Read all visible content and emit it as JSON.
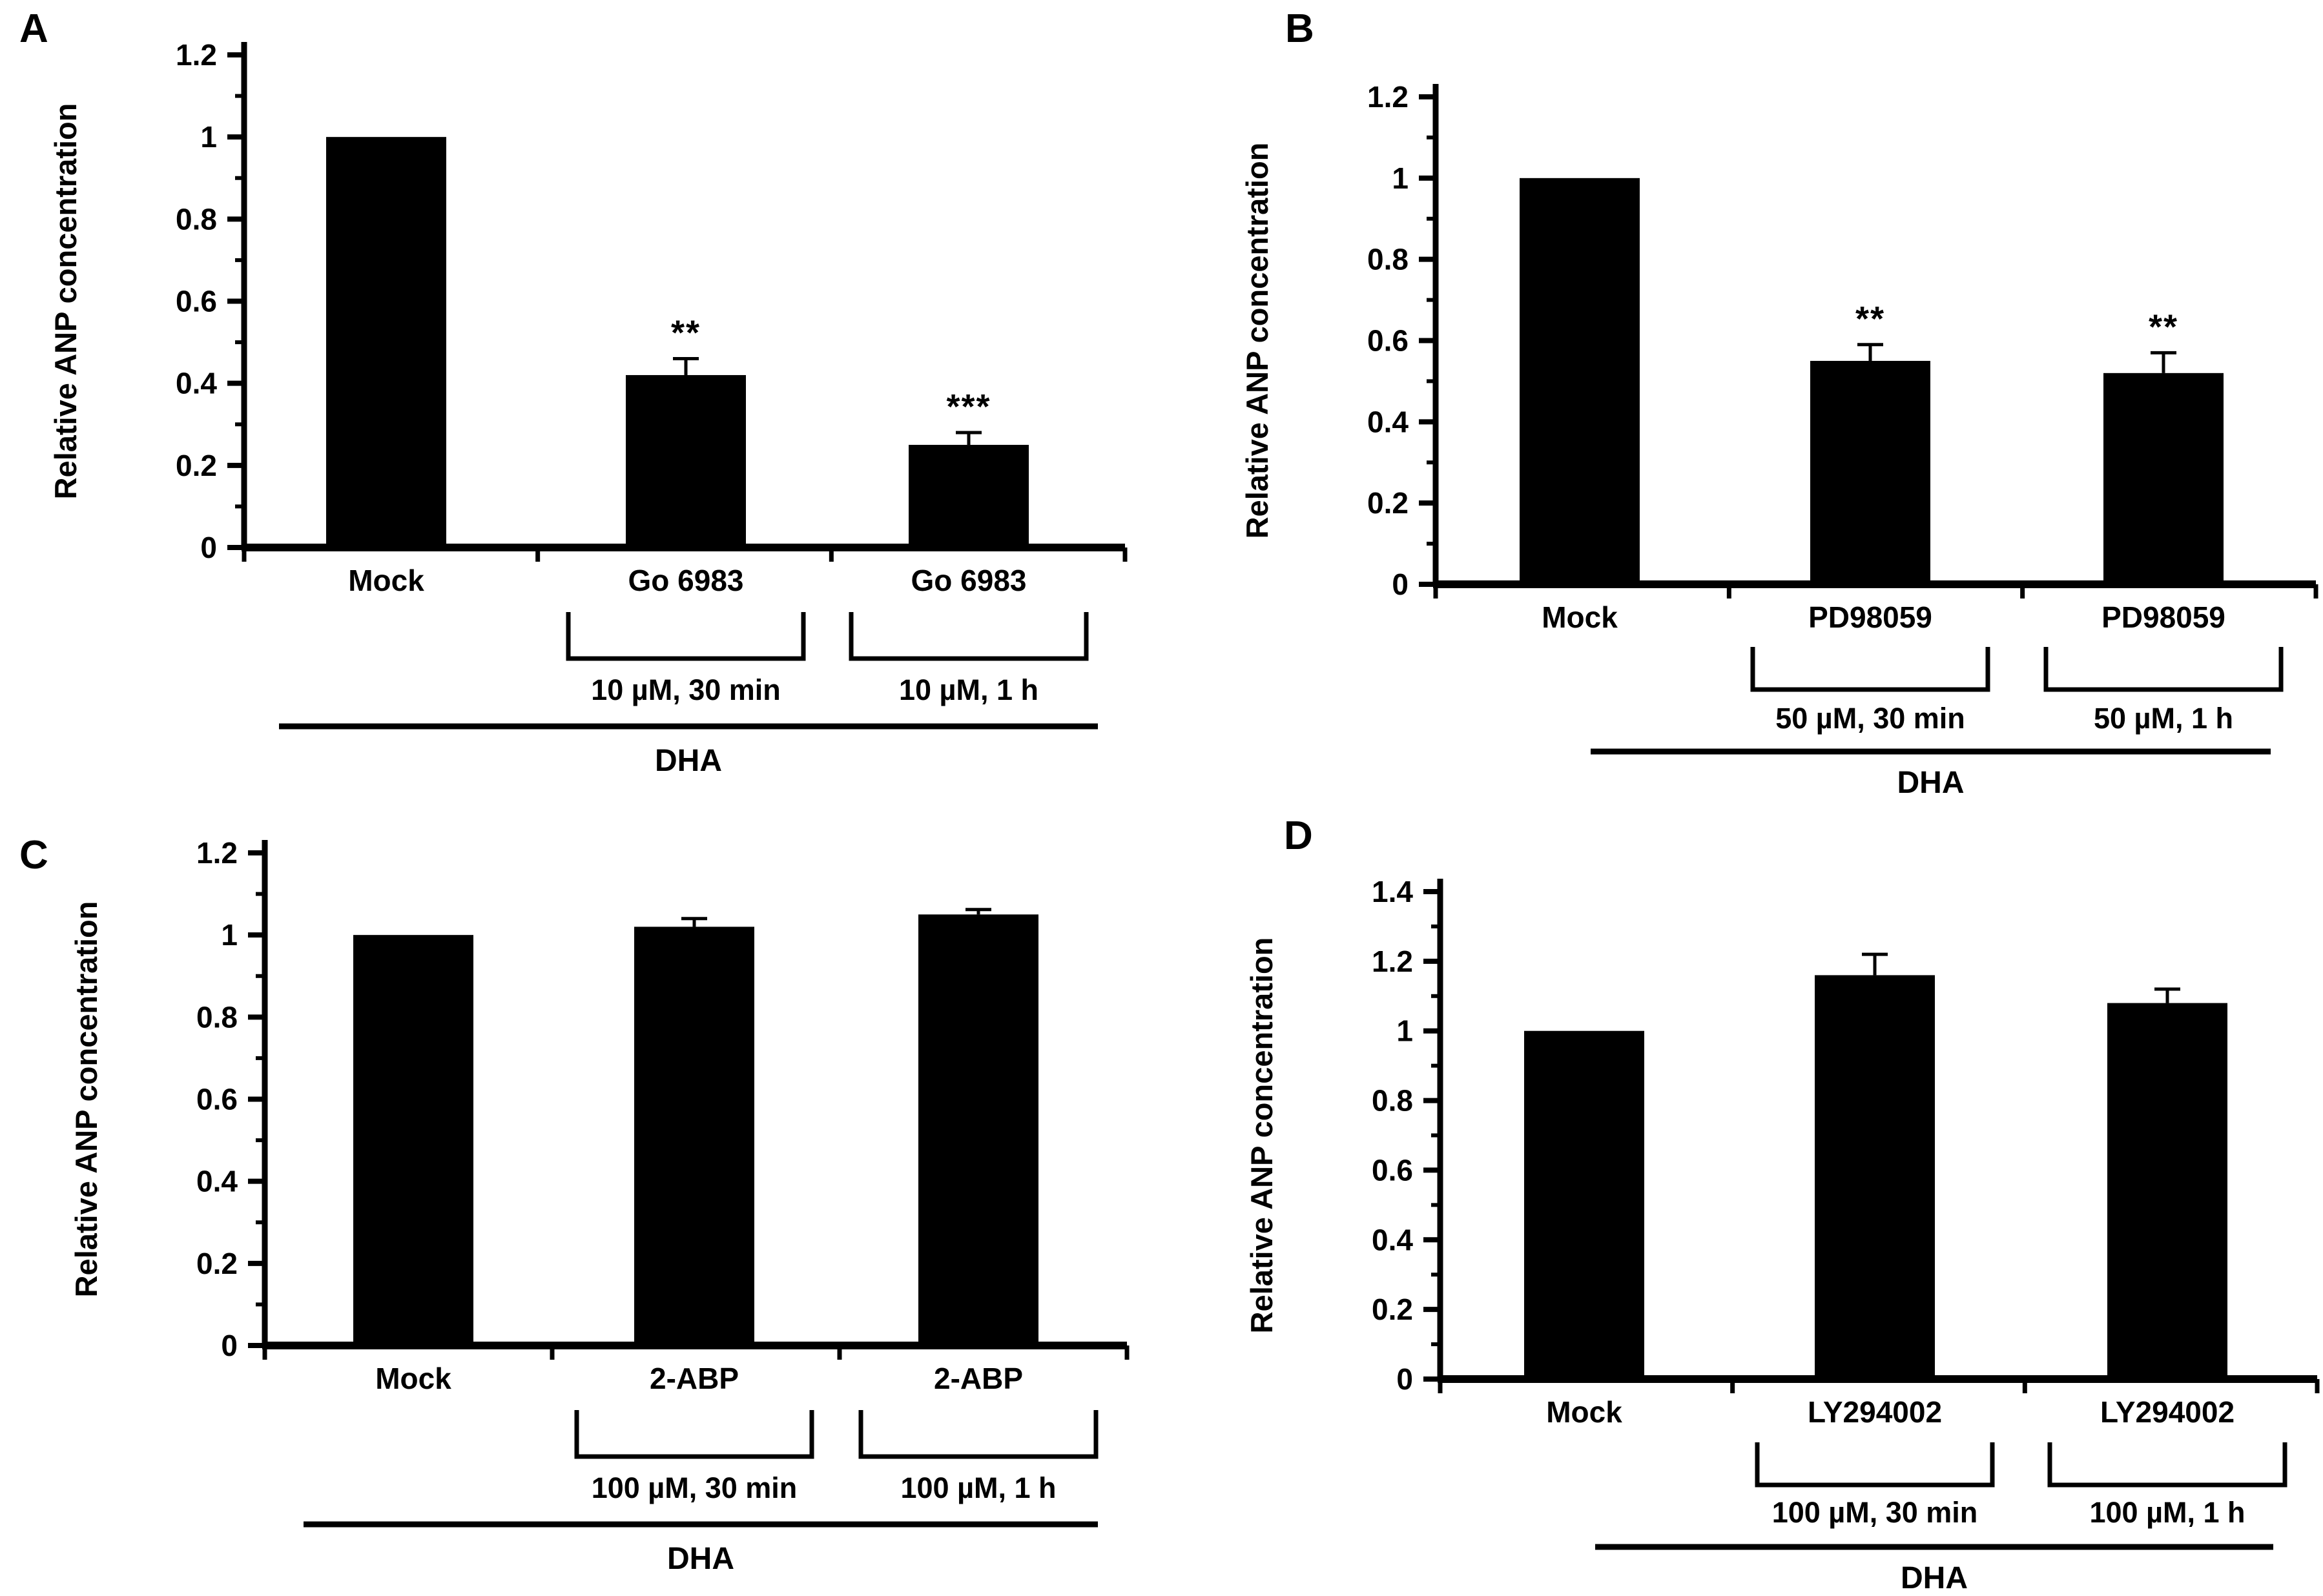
{
  "figure": {
    "background_color": "#ffffff",
    "bar_color": "#000000",
    "text_color": "#000000"
  },
  "chart_data": [
    {
      "type": "bar",
      "panel": "A",
      "ylabel": "Relative ANP concentration",
      "xlabel": "",
      "ylim": [
        0,
        1.2
      ],
      "yticks": [
        0,
        0.2,
        0.4,
        0.6,
        0.8,
        1,
        1.2
      ],
      "grid": false,
      "legend": "none",
      "group_line_label": "DHA",
      "bars": [
        {
          "category": "Mock",
          "value": 1.0,
          "error": 0,
          "significance": "",
          "dose": "",
          "bracket": false
        },
        {
          "category": "Go 6983",
          "value": 0.42,
          "error": 0.04,
          "significance": "**",
          "dose": "10 µM, 30 min",
          "bracket": true
        },
        {
          "category": "Go 6983",
          "value": 0.25,
          "error": 0.03,
          "significance": "***",
          "dose": "10 µM, 1 h",
          "bracket": true
        }
      ]
    },
    {
      "type": "bar",
      "panel": "B",
      "ylabel": "Relative ANP concentration",
      "xlabel": "",
      "ylim": [
        0,
        1.2
      ],
      "yticks": [
        0,
        0.2,
        0.4,
        0.6,
        0.8,
        1,
        1.2
      ],
      "grid": false,
      "legend": "none",
      "group_line_label": "DHA",
      "bars": [
        {
          "category": "Mock",
          "value": 1.0,
          "error": 0,
          "significance": "",
          "dose": "",
          "bracket": false
        },
        {
          "category": "PD98059",
          "value": 0.55,
          "error": 0.04,
          "significance": "**",
          "dose": "50 µM, 30 min",
          "bracket": true
        },
        {
          "category": "PD98059",
          "value": 0.52,
          "error": 0.05,
          "significance": "**",
          "dose": "50 µM, 1 h",
          "bracket": true
        }
      ]
    },
    {
      "type": "bar",
      "panel": "C",
      "ylabel": "Relative ANP concentration",
      "xlabel": "",
      "ylim": [
        0,
        1.2
      ],
      "yticks": [
        0,
        0.2,
        0.4,
        0.6,
        0.8,
        1,
        1.2
      ],
      "grid": false,
      "legend": "none",
      "group_line_label": "DHA",
      "bars": [
        {
          "category": "Mock",
          "value": 1.0,
          "error": 0,
          "significance": "",
          "dose": "",
          "bracket": false
        },
        {
          "category": "2-ABP",
          "value": 1.02,
          "error": 0.02,
          "significance": "",
          "dose": "100 µM, 30 min",
          "bracket": true
        },
        {
          "category": "2-ABP",
          "value": 1.05,
          "error": 0.012,
          "significance": "",
          "dose": "100 µM, 1 h",
          "bracket": true
        }
      ]
    },
    {
      "type": "bar",
      "panel": "D",
      "ylabel": "Relative ANP concentration",
      "xlabel": "",
      "ylim": [
        0,
        1.4
      ],
      "yticks": [
        0,
        0.2,
        0.4,
        0.6,
        0.8,
        1,
        1.2,
        1.4
      ],
      "grid": false,
      "legend": "none",
      "group_line_label": "DHA",
      "bars": [
        {
          "category": "Mock",
          "value": 1.0,
          "error": 0,
          "significance": "",
          "dose": "",
          "bracket": false
        },
        {
          "category": "LY294002",
          "value": 1.16,
          "error": 0.06,
          "significance": "",
          "dose": "100 µM, 30 min",
          "bracket": true
        },
        {
          "category": "LY294002",
          "value": 1.08,
          "error": 0.04,
          "significance": "",
          "dose": "100 µM, 1 h",
          "bracket": true
        }
      ]
    }
  ]
}
